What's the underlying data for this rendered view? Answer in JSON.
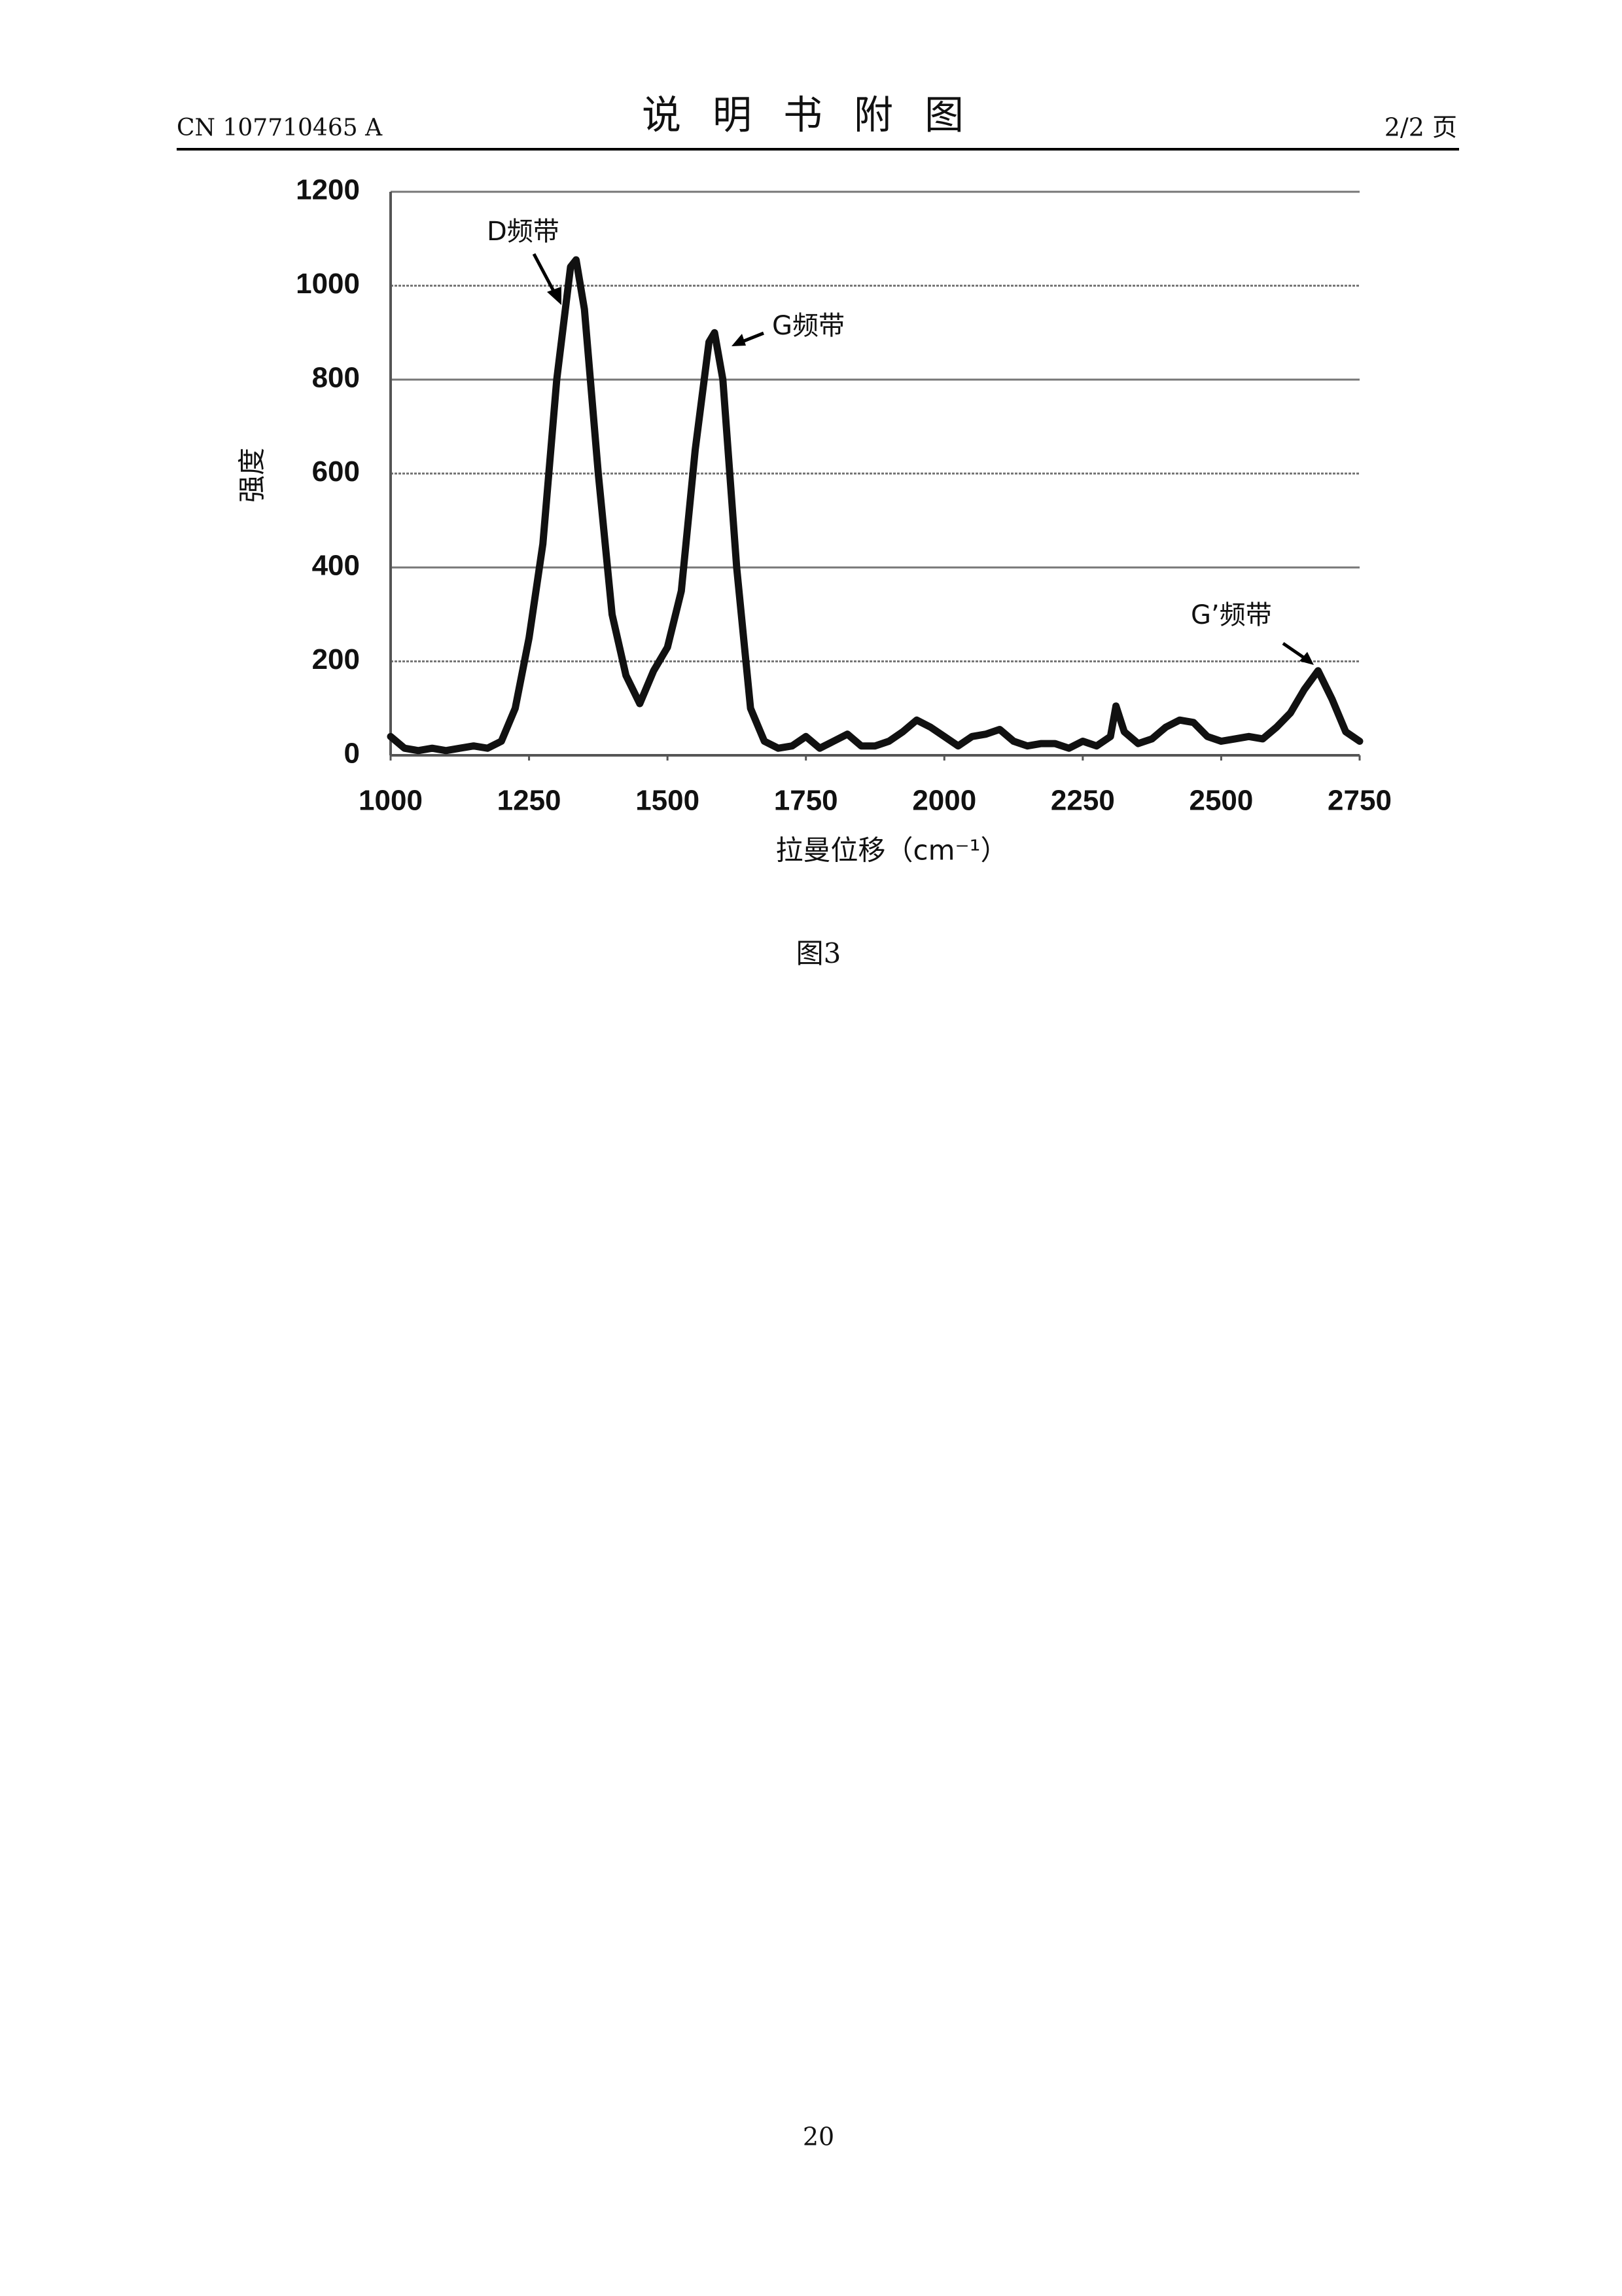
{
  "header": {
    "left": "CN 107710465 A",
    "title": "说明书附图",
    "right": "2/2 页"
  },
  "chart_data": {
    "type": "line",
    "ylabel": "强度",
    "xlabel": "拉曼位移（cm⁻¹）",
    "annotations": [
      "D频带",
      "G频带",
      "G’频带"
    ],
    "x": [
      1000,
      1025,
      1050,
      1075,
      1100,
      1125,
      1150,
      1175,
      1200,
      1225,
      1250,
      1275,
      1300,
      1325,
      1335,
      1350,
      1375,
      1400,
      1425,
      1450,
      1475,
      1500,
      1525,
      1550,
      1575,
      1585,
      1600,
      1625,
      1650,
      1675,
      1700,
      1725,
      1750,
      1775,
      1800,
      1825,
      1850,
      1875,
      1900,
      1925,
      1950,
      1975,
      2000,
      2025,
      2050,
      2075,
      2100,
      2125,
      2150,
      2175,
      2200,
      2225,
      2250,
      2275,
      2300,
      2310,
      2325,
      2350,
      2375,
      2400,
      2425,
      2450,
      2475,
      2500,
      2525,
      2550,
      2575,
      2600,
      2625,
      2650,
      2675,
      2700,
      2725,
      2750
    ],
    "values": [
      40,
      15,
      10,
      15,
      10,
      15,
      20,
      15,
      30,
      100,
      250,
      450,
      800,
      1040,
      1055,
      950,
      600,
      300,
      170,
      110,
      180,
      230,
      350,
      650,
      880,
      900,
      800,
      400,
      100,
      30,
      15,
      20,
      40,
      15,
      30,
      45,
      20,
      20,
      30,
      50,
      75,
      60,
      40,
      20,
      40,
      45,
      55,
      30,
      20,
      25,
      25,
      15,
      30,
      20,
      40,
      105,
      50,
      25,
      35,
      60,
      75,
      70,
      40,
      30,
      35,
      40,
      35,
      60,
      90,
      140,
      180,
      120,
      50,
      30
    ],
    "color": "#111111",
    "xlim": [
      1000,
      2750
    ],
    "xticks": [
      1000,
      1250,
      1500,
      1750,
      2000,
      2250,
      2500,
      2750
    ],
    "ylim": [
      0,
      1200
    ],
    "yticks": [
      0,
      200,
      400,
      600,
      800,
      1000,
      1200
    ],
    "grid": true
  },
  "caption": "图3",
  "page_number": "20"
}
